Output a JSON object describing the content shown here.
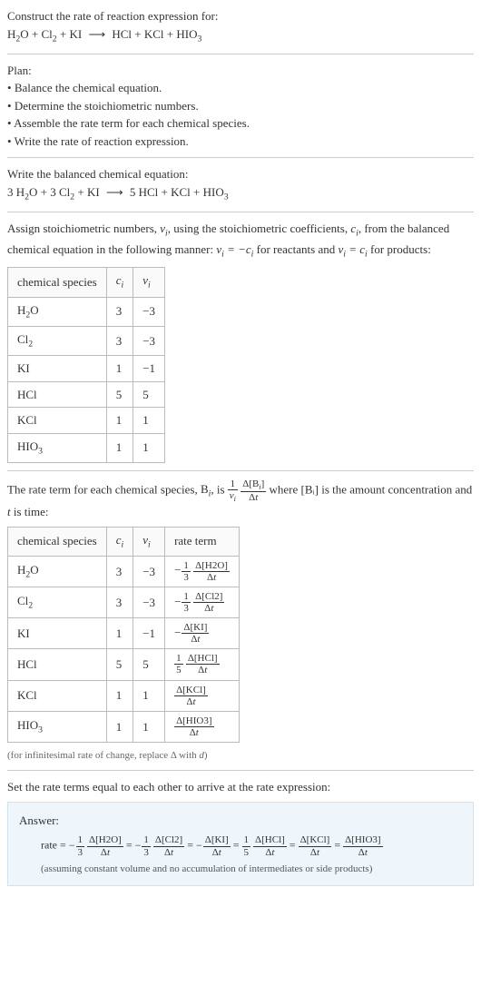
{
  "header": {
    "prompt": "Construct the rate of reaction expression for:",
    "equation_unbalanced": "H₂O + Cl₂ + KI ⟶ HCl + KCl + HIO₃"
  },
  "plan": {
    "title": "Plan:",
    "items": [
      "Balance the chemical equation.",
      "Determine the stoichiometric numbers.",
      "Assemble the rate term for each chemical species.",
      "Write the rate of reaction expression."
    ]
  },
  "balance": {
    "title": "Write the balanced chemical equation:",
    "equation_balanced": "3 H₂O + 3 Cl₂ + KI ⟶ 5 HCl + KCl + HIO₃"
  },
  "assign_text": {
    "line1a": "Assign stoichiometric numbers, ",
    "nu_i": "νᵢ",
    "line1b": ", using the stoichiometric coefficients, ",
    "c_i": "cᵢ",
    "line1c": ", from the balanced chemical equation in the following manner: ",
    "rel1": "νᵢ = −cᵢ",
    "line1d": " for reactants and ",
    "rel2": "νᵢ = cᵢ",
    "line1e": " for products:"
  },
  "table1": {
    "headers": [
      "chemical species",
      "cᵢ",
      "νᵢ"
    ],
    "rows": [
      {
        "sp": "H₂O",
        "c": "3",
        "nu": "−3"
      },
      {
        "sp": "Cl₂",
        "c": "3",
        "nu": "−3"
      },
      {
        "sp": "KI",
        "c": "1",
        "nu": "−1"
      },
      {
        "sp": "HCl",
        "c": "5",
        "nu": "5"
      },
      {
        "sp": "KCl",
        "c": "1",
        "nu": "1"
      },
      {
        "sp": "HIO₃",
        "c": "1",
        "nu": "1"
      }
    ]
  },
  "rate_term_text": {
    "a": "The rate term for each chemical species, ",
    "Bi": "Bᵢ",
    "b": ", is ",
    "c": " where [Bᵢ] is the amount concentration and ",
    "t": "t",
    "d": " is time:"
  },
  "rate_frac_main": {
    "one": "1",
    "nu": "νᵢ",
    "dBi": "Δ[Bᵢ]",
    "dt": "Δt"
  },
  "table2": {
    "headers": [
      "chemical species",
      "cᵢ",
      "νᵢ",
      "rate term"
    ],
    "rows": [
      {
        "sp": "H₂O",
        "c": "3",
        "nu": "−3",
        "neg": "−",
        "n1": "1",
        "d1": "3",
        "top": "Δ[H2O]",
        "bot": "Δt"
      },
      {
        "sp": "Cl₂",
        "c": "3",
        "nu": "−3",
        "neg": "−",
        "n1": "1",
        "d1": "3",
        "top": "Δ[Cl2]",
        "bot": "Δt"
      },
      {
        "sp": "KI",
        "c": "1",
        "nu": "−1",
        "neg": "−",
        "n1": "",
        "d1": "",
        "top": "Δ[KI]",
        "bot": "Δt"
      },
      {
        "sp": "HCl",
        "c": "5",
        "nu": "5",
        "neg": "",
        "n1": "1",
        "d1": "5",
        "top": "Δ[HCl]",
        "bot": "Δt"
      },
      {
        "sp": "KCl",
        "c": "1",
        "nu": "1",
        "neg": "",
        "n1": "",
        "d1": "",
        "top": "Δ[KCl]",
        "bot": "Δt"
      },
      {
        "sp": "HIO₃",
        "c": "1",
        "nu": "1",
        "neg": "",
        "n1": "",
        "d1": "",
        "top": "Δ[HIO3]",
        "bot": "Δt"
      }
    ],
    "caption": "(for infinitesimal rate of change, replace Δ with d)"
  },
  "set_equal": "Set the rate terms equal to each other to arrive at the rate expression:",
  "answer": {
    "label": "Answer:",
    "rate_word": "rate = ",
    "terms": [
      {
        "neg": "−",
        "n": "1",
        "d": "3",
        "top": "Δ[H2O]",
        "bot": "Δt"
      },
      {
        "neg": "−",
        "n": "1",
        "d": "3",
        "top": "Δ[Cl2]",
        "bot": "Δt"
      },
      {
        "neg": "−",
        "n": "",
        "d": "",
        "top": "Δ[KI]",
        "bot": "Δt"
      },
      {
        "neg": "",
        "n": "1",
        "d": "5",
        "top": "Δ[HCl]",
        "bot": "Δt"
      },
      {
        "neg": "",
        "n": "",
        "d": "",
        "top": "Δ[KCl]",
        "bot": "Δt"
      },
      {
        "neg": "",
        "n": "",
        "d": "",
        "top": "Δ[HIO3]",
        "bot": "Δt"
      }
    ],
    "eq": " = ",
    "assume": "(assuming constant volume and no accumulation of intermediates or side products)"
  }
}
